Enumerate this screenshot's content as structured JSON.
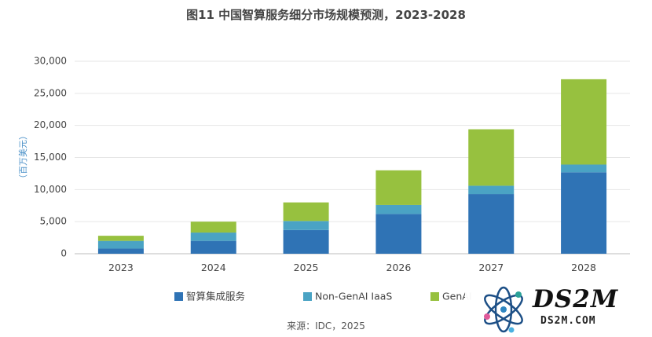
{
  "title": "图11 中国智算服务细分市场规模预测，2023-2028",
  "source": "来源：IDC，2025",
  "watermark": {
    "text": "DS2M",
    "sub": "DS2M.COM"
  },
  "colors": {
    "s1": "#2f73b5",
    "s2": "#4aa3c4",
    "s3": "#97c13f",
    "grid": "#e6e6e6",
    "axis": "#bdbdbd"
  },
  "chart_data": {
    "type": "bar",
    "stacked": true,
    "ylabel": "（百万美元）",
    "ylim": [
      0,
      30000
    ],
    "yticks": [
      "0",
      "5,000",
      "10,000",
      "15,000",
      "20,000",
      "25,000",
      "30,000"
    ],
    "categories": [
      "2023",
      "2024",
      "2025",
      "2026",
      "2027",
      "2028"
    ],
    "series": [
      {
        "name": "智算集成服务",
        "values": [
          800,
          2000,
          3700,
          6200,
          9300,
          12700
        ]
      },
      {
        "name": "Non-GenAI IaaS",
        "values": [
          1200,
          1300,
          1400,
          1400,
          1300,
          1200
        ]
      },
      {
        "name": "GenAI",
        "values": [
          800,
          1700,
          2900,
          5400,
          8800,
          13300
        ]
      }
    ],
    "legend": "bottom",
    "grid": true
  }
}
